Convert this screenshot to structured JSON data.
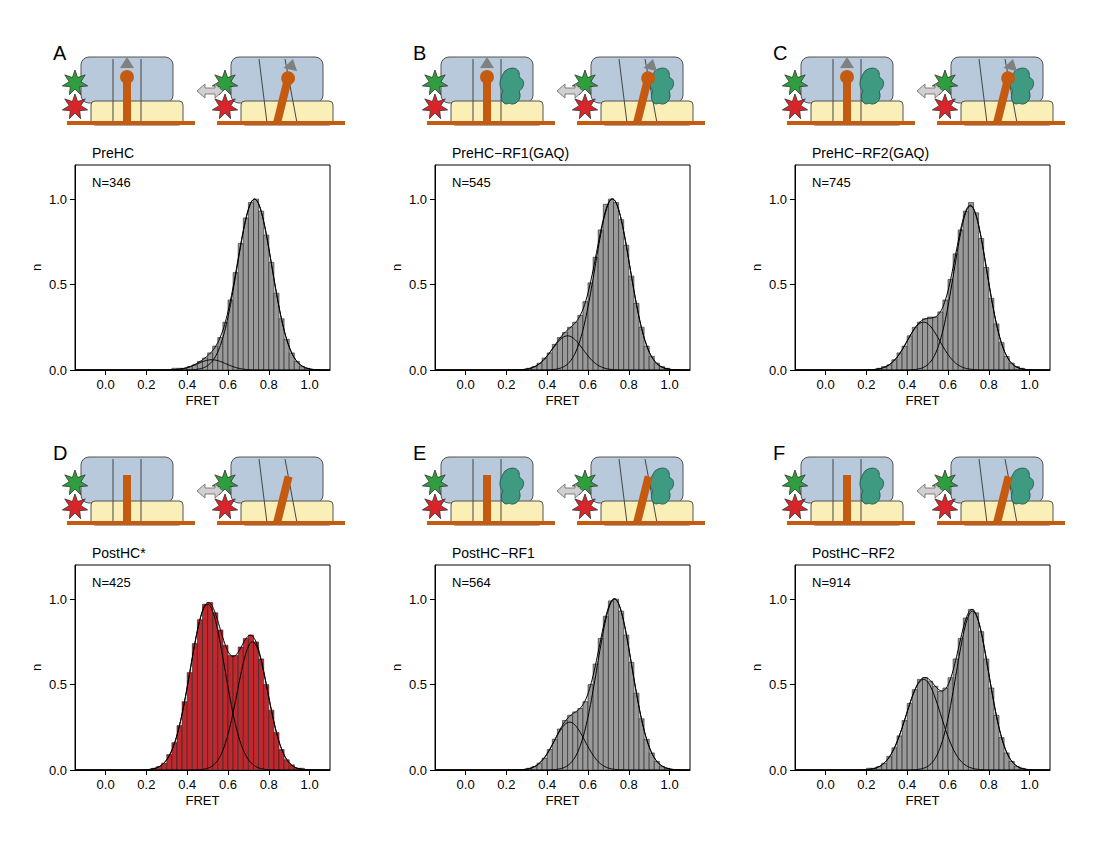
{
  "chart_data": [
    {
      "type": "histogram",
      "panel_label": "A",
      "title": "PreHC",
      "annotations": [
        "N=346"
      ],
      "x_label": "FRET",
      "y_label": "n",
      "color": "#9a9a9a",
      "bins": [
        0.2,
        0.225,
        0.25,
        0.275,
        0.3,
        0.325,
        0.35,
        0.375,
        0.4,
        0.425,
        0.45,
        0.475,
        0.5,
        0.525,
        0.55,
        0.575,
        0.6,
        0.625,
        0.65,
        0.675,
        0.7,
        0.725,
        0.75,
        0.775,
        0.8,
        0.825,
        0.85,
        0.875,
        0.9,
        0.925,
        0.95,
        0.975,
        1.0,
        1.025,
        1.05
      ],
      "counts": [
        0,
        0,
        0,
        0,
        0,
        0.01,
        0.01,
        0.01,
        0.02,
        0.03,
        0.05,
        0.07,
        0.1,
        0.14,
        0.19,
        0.28,
        0.41,
        0.57,
        0.74,
        0.89,
        0.98,
        1.0,
        0.93,
        0.79,
        0.63,
        0.45,
        0.3,
        0.18,
        0.1,
        0.05,
        0.02,
        0.01,
        0,
        0
      ],
      "fits": [
        {
          "center": 0.73,
          "sigma": 0.085,
          "amplitude": 1.0
        },
        {
          "center": 0.52,
          "sigma": 0.07,
          "amplitude": 0.06
        }
      ],
      "xlim": [
        -0.15,
        1.1
      ],
      "xticks": [
        {
          "value": 0,
          "label": "0.0"
        },
        {
          "value": 0.2,
          "label": "0.2"
        },
        {
          "value": 0.4,
          "label": "0.4"
        },
        {
          "value": 0.6,
          "label": "0.6"
        },
        {
          "value": 0.8,
          "label": "0.8"
        },
        {
          "value": 1,
          "label": "1.0"
        }
      ],
      "ylim": [
        0,
        1.2
      ],
      "yticks": [
        {
          "value": 0,
          "label": "0.0"
        },
        {
          "value": 0.5,
          "label": "0.5"
        },
        {
          "value": 1,
          "label": "1.0"
        }
      ],
      "grid": false
    },
    {
      "type": "histogram",
      "panel_label": "B",
      "title": "PreHC−RF1(GAQ)",
      "annotations": [
        "N=545"
      ],
      "x_label": "FRET",
      "y_label": "n",
      "color": "#9a9a9a",
      "bins": [
        0.2,
        0.225,
        0.25,
        0.275,
        0.3,
        0.325,
        0.35,
        0.375,
        0.4,
        0.425,
        0.45,
        0.475,
        0.5,
        0.525,
        0.55,
        0.575,
        0.6,
        0.625,
        0.65,
        0.675,
        0.7,
        0.725,
        0.75,
        0.775,
        0.8,
        0.825,
        0.85,
        0.875,
        0.9,
        0.925,
        0.95,
        0.975,
        1.0,
        1.025,
        1.05
      ],
      "counts": [
        0,
        0,
        0,
        0,
        0.01,
        0.02,
        0.04,
        0.07,
        0.1,
        0.15,
        0.19,
        0.22,
        0.25,
        0.28,
        0.32,
        0.4,
        0.51,
        0.66,
        0.82,
        0.97,
        1.0,
        0.98,
        0.88,
        0.73,
        0.55,
        0.39,
        0.25,
        0.14,
        0.08,
        0.04,
        0.02,
        0.01,
        0,
        0
      ],
      "fits": [
        {
          "center": 0.72,
          "sigma": 0.085,
          "amplitude": 1.0
        },
        {
          "center": 0.5,
          "sigma": 0.075,
          "amplitude": 0.2
        }
      ],
      "xlim": [
        -0.15,
        1.1
      ],
      "xticks": [
        {
          "value": 0,
          "label": "0.0"
        },
        {
          "value": 0.2,
          "label": "0.2"
        },
        {
          "value": 0.4,
          "label": "0.4"
        },
        {
          "value": 0.6,
          "label": "0.6"
        },
        {
          "value": 0.8,
          "label": "0.8"
        },
        {
          "value": 1,
          "label": "1.0"
        }
      ],
      "ylim": [
        0,
        1.2
      ],
      "yticks": [
        {
          "value": 0,
          "label": "0.0"
        },
        {
          "value": 0.5,
          "label": "0.5"
        },
        {
          "value": 1,
          "label": "1.0"
        }
      ],
      "grid": false
    },
    {
      "type": "histogram",
      "panel_label": "C",
      "title": "PreHC−RF2(GAQ)",
      "annotations": [
        "N=745"
      ],
      "x_label": "FRET",
      "y_label": "n",
      "color": "#9a9a9a",
      "bins": [
        0.2,
        0.225,
        0.25,
        0.275,
        0.3,
        0.325,
        0.35,
        0.375,
        0.4,
        0.425,
        0.45,
        0.475,
        0.5,
        0.525,
        0.55,
        0.575,
        0.6,
        0.625,
        0.65,
        0.675,
        0.7,
        0.725,
        0.75,
        0.775,
        0.8,
        0.825,
        0.85,
        0.875,
        0.9,
        0.925,
        0.95,
        0.975,
        1.0,
        1.025,
        1.05
      ],
      "counts": [
        0,
        0,
        0.01,
        0.02,
        0.03,
        0.06,
        0.1,
        0.14,
        0.2,
        0.25,
        0.28,
        0.3,
        0.31,
        0.31,
        0.34,
        0.41,
        0.53,
        0.68,
        0.82,
        0.93,
        0.98,
        0.92,
        0.77,
        0.6,
        0.42,
        0.27,
        0.16,
        0.08,
        0.04,
        0.02,
        0.01,
        0,
        0,
        0
      ],
      "fits": [
        {
          "center": 0.71,
          "sigma": 0.08,
          "amplitude": 0.96
        },
        {
          "center": 0.48,
          "sigma": 0.08,
          "amplitude": 0.28
        }
      ],
      "xlim": [
        -0.15,
        1.1
      ],
      "xticks": [
        {
          "value": 0,
          "label": "0.0"
        },
        {
          "value": 0.2,
          "label": "0.2"
        },
        {
          "value": 0.4,
          "label": "0.4"
        },
        {
          "value": 0.6,
          "label": "0.6"
        },
        {
          "value": 0.8,
          "label": "0.8"
        },
        {
          "value": 1,
          "label": "1.0"
        }
      ],
      "ylim": [
        0,
        1.2
      ],
      "yticks": [
        {
          "value": 0,
          "label": "0.0"
        },
        {
          "value": 0.5,
          "label": "0.5"
        },
        {
          "value": 1,
          "label": "1.0"
        }
      ],
      "grid": false
    },
    {
      "type": "histogram",
      "panel_label": "D",
      "title": "PostHC*",
      "annotations": [
        "N=425"
      ],
      "x_label": "FRET",
      "y_label": "n",
      "color": "#c0282d",
      "bins": [
        0.2,
        0.225,
        0.25,
        0.275,
        0.3,
        0.325,
        0.35,
        0.375,
        0.4,
        0.425,
        0.45,
        0.475,
        0.5,
        0.525,
        0.55,
        0.575,
        0.6,
        0.625,
        0.65,
        0.675,
        0.7,
        0.725,
        0.75,
        0.775,
        0.8,
        0.825,
        0.85,
        0.875,
        0.9,
        0.925,
        0.95,
        0.975,
        1.0,
        1.025,
        1.05
      ],
      "counts": [
        0,
        0.01,
        0.02,
        0.04,
        0.09,
        0.16,
        0.26,
        0.4,
        0.57,
        0.74,
        0.88,
        0.97,
        0.98,
        0.92,
        0.82,
        0.73,
        0.67,
        0.67,
        0.72,
        0.77,
        0.79,
        0.75,
        0.65,
        0.5,
        0.35,
        0.22,
        0.12,
        0.06,
        0.03,
        0.01,
        0.01,
        0,
        0,
        0
      ],
      "fits": [
        {
          "center": 0.5,
          "sigma": 0.085,
          "amplitude": 0.97
        },
        {
          "center": 0.72,
          "sigma": 0.075,
          "amplitude": 0.75
        }
      ],
      "xlim": [
        -0.15,
        1.1
      ],
      "xticks": [
        {
          "value": 0,
          "label": "0.0"
        },
        {
          "value": 0.2,
          "label": "0.2"
        },
        {
          "value": 0.4,
          "label": "0.4"
        },
        {
          "value": 0.6,
          "label": "0.6"
        },
        {
          "value": 0.8,
          "label": "0.8"
        },
        {
          "value": 1,
          "label": "1.0"
        }
      ],
      "ylim": [
        0,
        1.2
      ],
      "yticks": [
        {
          "value": 0,
          "label": "0.0"
        },
        {
          "value": 0.5,
          "label": "0.5"
        },
        {
          "value": 1,
          "label": "1.0"
        }
      ],
      "grid": false
    },
    {
      "type": "histogram",
      "panel_label": "E",
      "title": "PostHC−RF1",
      "annotations": [
        "N=564"
      ],
      "x_label": "FRET",
      "y_label": "n",
      "color": "#9a9a9a",
      "bins": [
        0.2,
        0.225,
        0.25,
        0.275,
        0.3,
        0.325,
        0.35,
        0.375,
        0.4,
        0.425,
        0.45,
        0.475,
        0.5,
        0.525,
        0.55,
        0.575,
        0.6,
        0.625,
        0.65,
        0.675,
        0.7,
        0.725,
        0.75,
        0.775,
        0.8,
        0.825,
        0.85,
        0.875,
        0.9,
        0.925,
        0.95,
        0.975,
        1.0,
        1.025,
        1.05
      ],
      "counts": [
        0,
        0,
        0,
        0,
        0.01,
        0.02,
        0.04,
        0.07,
        0.12,
        0.18,
        0.24,
        0.29,
        0.32,
        0.34,
        0.36,
        0.4,
        0.5,
        0.62,
        0.77,
        0.9,
        0.99,
        1.0,
        0.93,
        0.79,
        0.63,
        0.45,
        0.3,
        0.18,
        0.1,
        0.05,
        0.02,
        0.01,
        0,
        0
      ],
      "fits": [
        {
          "center": 0.73,
          "sigma": 0.085,
          "amplitude": 1.0
        },
        {
          "center": 0.51,
          "sigma": 0.075,
          "amplitude": 0.28
        }
      ],
      "xlim": [
        -0.15,
        1.1
      ],
      "xticks": [
        {
          "value": 0,
          "label": "0.0"
        },
        {
          "value": 0.2,
          "label": "0.2"
        },
        {
          "value": 0.4,
          "label": "0.4"
        },
        {
          "value": 0.6,
          "label": "0.6"
        },
        {
          "value": 0.8,
          "label": "0.8"
        },
        {
          "value": 1,
          "label": "1.0"
        }
      ],
      "ylim": [
        0,
        1.2
      ],
      "yticks": [
        {
          "value": 0,
          "label": "0.0"
        },
        {
          "value": 0.5,
          "label": "0.5"
        },
        {
          "value": 1,
          "label": "1.0"
        }
      ],
      "grid": false
    },
    {
      "type": "histogram",
      "panel_label": "F",
      "title": "PostHC−RF2",
      "annotations": [
        "N=914"
      ],
      "x_label": "FRET",
      "y_label": "n",
      "color": "#9a9a9a",
      "bins": [
        0.2,
        0.225,
        0.25,
        0.275,
        0.3,
        0.325,
        0.35,
        0.375,
        0.4,
        0.425,
        0.45,
        0.475,
        0.5,
        0.525,
        0.55,
        0.575,
        0.6,
        0.625,
        0.65,
        0.675,
        0.7,
        0.725,
        0.75,
        0.775,
        0.8,
        0.825,
        0.85,
        0.875,
        0.9,
        0.925,
        0.95,
        0.975,
        1.0,
        1.025,
        1.05
      ],
      "counts": [
        0.01,
        0.01,
        0.02,
        0.04,
        0.08,
        0.13,
        0.2,
        0.29,
        0.39,
        0.47,
        0.53,
        0.54,
        0.52,
        0.49,
        0.46,
        0.48,
        0.54,
        0.65,
        0.77,
        0.89,
        0.94,
        0.92,
        0.81,
        0.65,
        0.48,
        0.32,
        0.19,
        0.1,
        0.05,
        0.02,
        0.01,
        0,
        0,
        0
      ],
      "fits": [
        {
          "center": 0.48,
          "sigma": 0.085,
          "amplitude": 0.53
        },
        {
          "center": 0.72,
          "sigma": 0.08,
          "amplitude": 0.93
        }
      ],
      "xlim": [
        -0.15,
        1.1
      ],
      "xticks": [
        {
          "value": 0,
          "label": "0.0"
        },
        {
          "value": 0.2,
          "label": "0.2"
        },
        {
          "value": 0.4,
          "label": "0.4"
        },
        {
          "value": 0.6,
          "label": "0.6"
        },
        {
          "value": 0.8,
          "label": "0.8"
        },
        {
          "value": 1,
          "label": "1.0"
        }
      ],
      "ylim": [
        0,
        1.2
      ],
      "yticks": [
        {
          "value": 0,
          "label": "0.0"
        },
        {
          "value": 0.5,
          "label": "0.5"
        },
        {
          "value": 1,
          "label": "1.0"
        }
      ],
      "grid": false
    }
  ]
}
